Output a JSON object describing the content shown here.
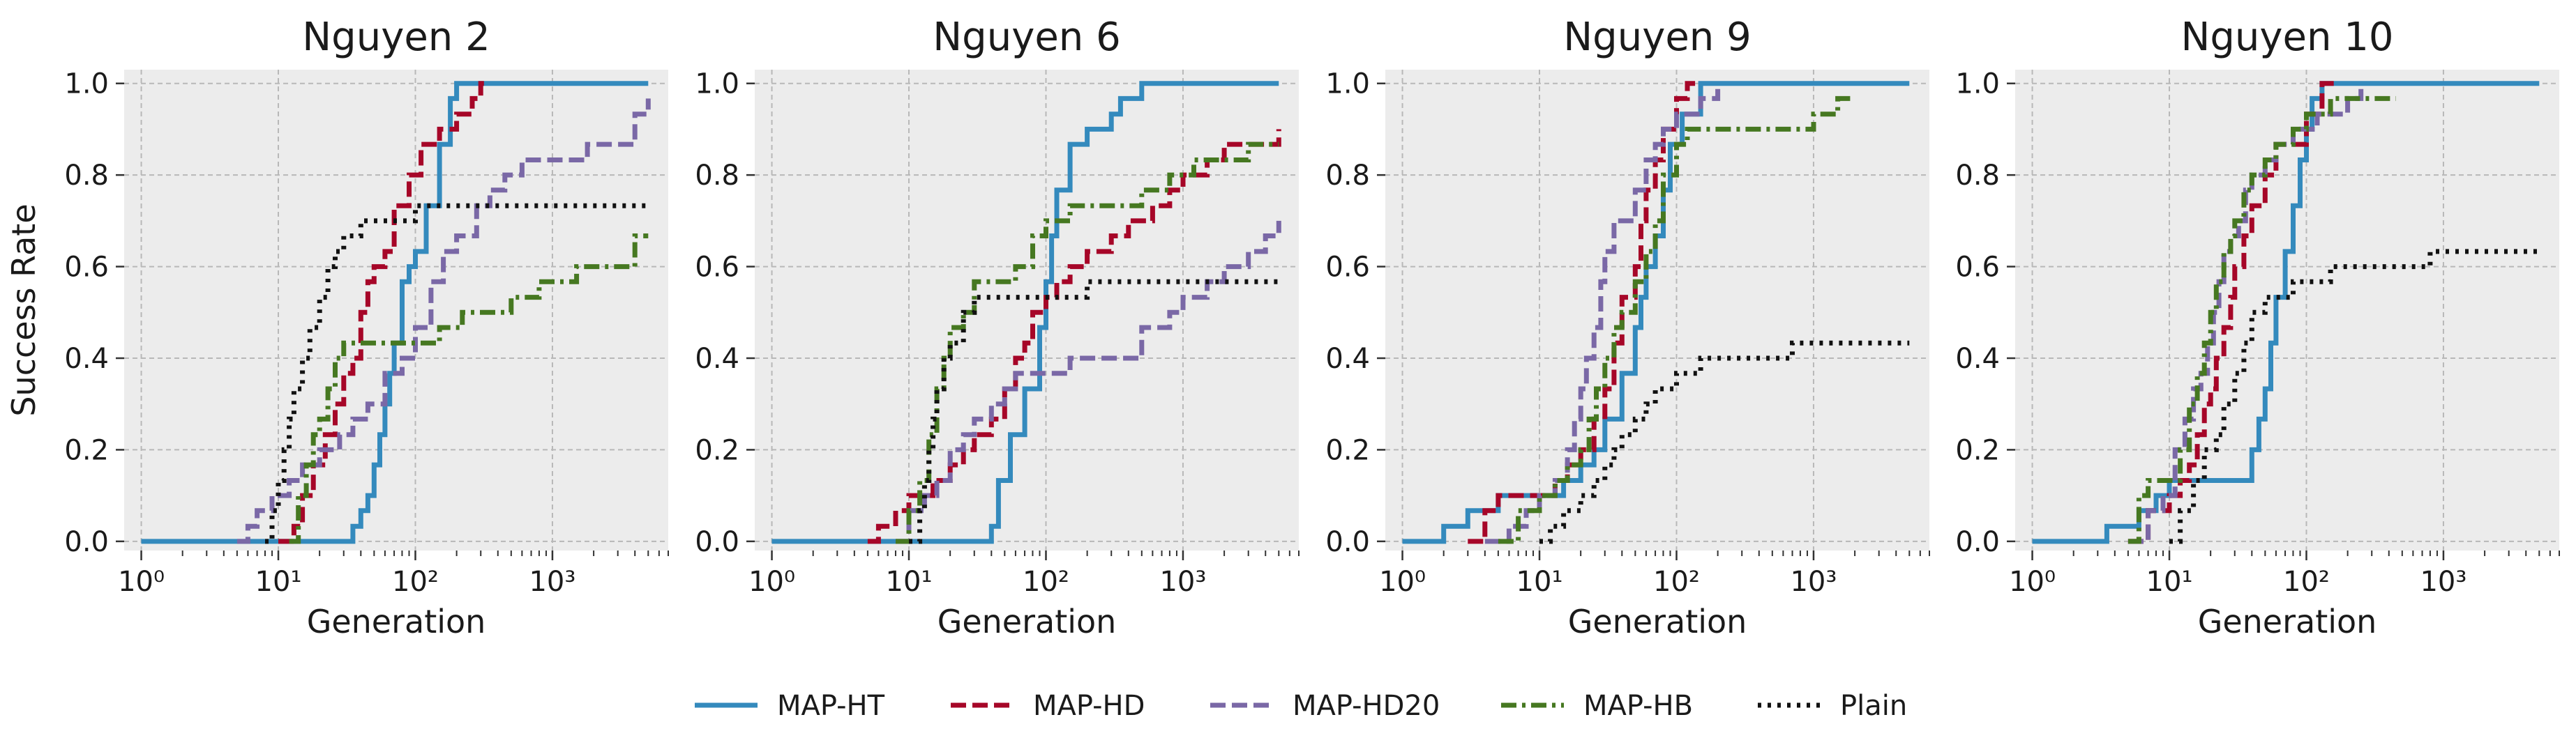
{
  "chart_data": [
    {
      "type": "line",
      "title": "Nguyen 2",
      "xlabel": "Generation",
      "ylabel": "Success Rate",
      "xscale": "log",
      "xlim": [
        0.75,
        7000
      ],
      "ylim": [
        -0.02,
        1.03
      ],
      "x_ticks": [
        1,
        10,
        100,
        1000
      ],
      "x_tick_labels": [
        "10⁰",
        "10¹",
        "10²",
        "10³"
      ],
      "y_ticks": [
        0.0,
        0.2,
        0.4,
        0.6,
        0.8,
        1.0
      ],
      "y_tick_labels": [
        "0.0",
        "0.2",
        "0.4",
        "0.6",
        "0.8",
        "1.0"
      ],
      "grid": true,
      "series": [
        {
          "name": "MAP-HT",
          "x": [
            1,
            30,
            35,
            40,
            45,
            50,
            55,
            60,
            65,
            70,
            80,
            90,
            100,
            120,
            150,
            180,
            200,
            5000
          ],
          "y": [
            0,
            0,
            0.033,
            0.067,
            0.1,
            0.167,
            0.233,
            0.3,
            0.367,
            0.433,
            0.567,
            0.6,
            0.633,
            0.733,
            0.867,
            0.967,
            1.0,
            1.0
          ]
        },
        {
          "name": "MAP-HD",
          "x": [
            10,
            13,
            15,
            18,
            22,
            26,
            30,
            35,
            40,
            45,
            50,
            60,
            70,
            90,
            110,
            150,
            200,
            260,
            300,
            330
          ],
          "y": [
            0,
            0.033,
            0.1,
            0.167,
            0.233,
            0.3,
            0.367,
            0.4,
            0.5,
            0.567,
            0.6,
            0.633,
            0.733,
            0.8,
            0.867,
            0.9,
            0.933,
            0.967,
            1.0,
            1.0
          ]
        },
        {
          "name": "MAP-HD20",
          "x": [
            5,
            6,
            7,
            9,
            12,
            15,
            20,
            28,
            35,
            45,
            60,
            80,
            100,
            130,
            160,
            200,
            280,
            350,
            450,
            600,
            800,
            1800,
            4000,
            5000
          ],
          "y": [
            0,
            0.033,
            0.067,
            0.1,
            0.133,
            0.167,
            0.2,
            0.233,
            0.267,
            0.3,
            0.367,
            0.4,
            0.467,
            0.567,
            0.633,
            0.667,
            0.733,
            0.767,
            0.8,
            0.833,
            0.833,
            0.867,
            0.933,
            0.967
          ]
        },
        {
          "name": "MAP-HB",
          "x": [
            12,
            14,
            16,
            18,
            20,
            23,
            26,
            30,
            40,
            60,
            100,
            150,
            200,
            220,
            250,
            300,
            500,
            800,
            1500,
            4000,
            5000
          ],
          "y": [
            0,
            0.1,
            0.167,
            0.233,
            0.267,
            0.333,
            0.4,
            0.433,
            0.433,
            0.433,
            0.433,
            0.467,
            0.467,
            0.5,
            0.5,
            0.5,
            0.533,
            0.567,
            0.6,
            0.667,
            0.667
          ]
        },
        {
          "name": "Plain",
          "x": [
            8,
            9,
            10,
            11,
            12,
            13,
            15,
            17,
            20,
            23,
            26,
            30,
            40,
            60,
            100,
            200,
            5000
          ],
          "y": [
            0,
            0.067,
            0.133,
            0.2,
            0.267,
            0.333,
            0.4,
            0.467,
            0.533,
            0.6,
            0.633,
            0.667,
            0.7,
            0.7,
            0.733,
            0.733,
            0.733
          ]
        }
      ]
    },
    {
      "type": "line",
      "title": "Nguyen 6",
      "xlabel": "Generation",
      "ylabel": "",
      "xscale": "log",
      "xlim": [
        0.75,
        7000
      ],
      "ylim": [
        -0.02,
        1.03
      ],
      "x_ticks": [
        1,
        10,
        100,
        1000
      ],
      "x_tick_labels": [
        "10⁰",
        "10¹",
        "10²",
        "10³"
      ],
      "y_ticks": [
        0.0,
        0.2,
        0.4,
        0.6,
        0.8,
        1.0
      ],
      "y_tick_labels": [
        "0.0",
        "0.2",
        "0.4",
        "0.6",
        "0.8",
        "1.0"
      ],
      "grid": true,
      "series": [
        {
          "name": "MAP-HT",
          "x": [
            1,
            40,
            45,
            55,
            70,
            90,
            100,
            110,
            120,
            150,
            200,
            300,
            350,
            500,
            5000
          ],
          "y": [
            0,
            0.033,
            0.133,
            0.233,
            0.333,
            0.467,
            0.567,
            0.667,
            0.767,
            0.867,
            0.9,
            0.933,
            0.967,
            1.0,
            1.0
          ]
        },
        {
          "name": "MAP-HD",
          "x": [
            5,
            6,
            8,
            10,
            15,
            20,
            25,
            30,
            40,
            50,
            60,
            70,
            80,
            100,
            120,
            150,
            200,
            300,
            400,
            600,
            800,
            1000,
            1500,
            2000,
            5000
          ],
          "y": [
            0,
            0.033,
            0.067,
            0.1,
            0.133,
            0.167,
            0.2,
            0.233,
            0.267,
            0.333,
            0.4,
            0.433,
            0.5,
            0.533,
            0.567,
            0.6,
            0.633,
            0.667,
            0.7,
            0.733,
            0.767,
            0.8,
            0.833,
            0.867,
            0.9
          ]
        },
        {
          "name": "MAP-HD20",
          "x": [
            8,
            10,
            13,
            16,
            20,
            25,
            30,
            40,
            50,
            60,
            80,
            100,
            150,
            200,
            300,
            500,
            800,
            1000,
            1500,
            2000,
            3000,
            4000,
            5000
          ],
          "y": [
            0,
            0.067,
            0.1,
            0.133,
            0.2,
            0.233,
            0.267,
            0.3,
            0.333,
            0.367,
            0.367,
            0.367,
            0.4,
            0.4,
            0.4,
            0.467,
            0.5,
            0.533,
            0.567,
            0.6,
            0.633,
            0.667,
            0.7
          ]
        },
        {
          "name": "MAP-HB",
          "x": [
            8,
            10,
            12,
            14,
            16,
            18,
            20,
            25,
            30,
            40,
            60,
            80,
            100,
            150,
            200,
            300,
            500,
            800,
            1200,
            2000,
            3000,
            5000
          ],
          "y": [
            0,
            0.067,
            0.133,
            0.233,
            0.333,
            0.4,
            0.467,
            0.5,
            0.567,
            0.567,
            0.6,
            0.667,
            0.7,
            0.733,
            0.733,
            0.733,
            0.767,
            0.8,
            0.833,
            0.833,
            0.867,
            0.867
          ]
        },
        {
          "name": "Plain",
          "x": [
            10,
            12,
            13,
            14,
            15,
            16,
            18,
            20,
            25,
            30,
            50,
            100,
            200,
            300,
            5000
          ],
          "y": [
            0,
            0.067,
            0.133,
            0.2,
            0.267,
            0.333,
            0.4,
            0.433,
            0.5,
            0.533,
            0.533,
            0.533,
            0.567,
            0.567,
            0.567
          ]
        }
      ]
    },
    {
      "type": "line",
      "title": "Nguyen 9",
      "xlabel": "Generation",
      "ylabel": "",
      "xscale": "log",
      "xlim": [
        0.75,
        7000
      ],
      "ylim": [
        -0.02,
        1.03
      ],
      "x_ticks": [
        1,
        10,
        100,
        1000
      ],
      "x_tick_labels": [
        "10⁰",
        "10¹",
        "10²",
        "10³"
      ],
      "y_ticks": [
        0.0,
        0.2,
        0.4,
        0.6,
        0.8,
        1.0
      ],
      "y_tick_labels": [
        "0.0",
        "0.2",
        "0.4",
        "0.6",
        "0.8",
        "1.0"
      ],
      "grid": true,
      "series": [
        {
          "name": "MAP-HT",
          "x": [
            1,
            2,
            3,
            5,
            10,
            15,
            20,
            25,
            30,
            40,
            50,
            55,
            60,
            70,
            80,
            90,
            110,
            150,
            5000
          ],
          "y": [
            0,
            0.033,
            0.067,
            0.1,
            0.1,
            0.133,
            0.167,
            0.2,
            0.267,
            0.367,
            0.467,
            0.533,
            0.6,
            0.667,
            0.767,
            0.867,
            0.933,
            1.0,
            1.0
          ]
        },
        {
          "name": "MAP-HD",
          "x": [
            3,
            4,
            5,
            7,
            10,
            13,
            16,
            20,
            25,
            30,
            35,
            40,
            50,
            55,
            60,
            70,
            80,
            100,
            120,
            140
          ],
          "y": [
            0,
            0.067,
            0.1,
            0.1,
            0.1,
            0.133,
            0.167,
            0.2,
            0.267,
            0.333,
            0.433,
            0.533,
            0.6,
            0.7,
            0.767,
            0.833,
            0.9,
            0.967,
            1.0,
            1.0
          ]
        },
        {
          "name": "MAP-HD20",
          "x": [
            4,
            6,
            8,
            10,
            13,
            16,
            18,
            20,
            22,
            25,
            28,
            30,
            35,
            40,
            50,
            60,
            70,
            80,
            100,
            150,
            200
          ],
          "y": [
            0,
            0.033,
            0.067,
            0.1,
            0.133,
            0.2,
            0.267,
            0.333,
            0.4,
            0.467,
            0.567,
            0.633,
            0.7,
            0.7,
            0.767,
            0.833,
            0.867,
            0.9,
            0.933,
            0.967,
            1.0
          ]
        },
        {
          "name": "MAP-HB",
          "x": [
            5,
            7,
            10,
            13,
            16,
            20,
            23,
            26,
            30,
            35,
            40,
            50,
            60,
            70,
            80,
            100,
            120,
            150,
            200,
            300,
            600,
            1000,
            1500,
            2000
          ],
          "y": [
            0,
            0.067,
            0.1,
            0.133,
            0.167,
            0.2,
            0.267,
            0.333,
            0.4,
            0.467,
            0.5,
            0.567,
            0.633,
            0.7,
            0.8,
            0.867,
            0.9,
            0.9,
            0.9,
            0.9,
            0.9,
            0.933,
            0.967,
            0.967
          ]
        },
        {
          "name": "Plain",
          "x": [
            10,
            12,
            15,
            20,
            25,
            30,
            35,
            40,
            50,
            60,
            70,
            80,
            100,
            150,
            200,
            300,
            600,
            700,
            5000
          ],
          "y": [
            0,
            0.033,
            0.067,
            0.1,
            0.133,
            0.167,
            0.2,
            0.233,
            0.267,
            0.3,
            0.333,
            0.333,
            0.367,
            0.4,
            0.4,
            0.4,
            0.4,
            0.433,
            0.433
          ]
        }
      ]
    },
    {
      "type": "line",
      "title": "Nguyen 10",
      "xlabel": "Generation",
      "ylabel": "",
      "xscale": "log",
      "xlim": [
        0.75,
        7000
      ],
      "ylim": [
        -0.02,
        1.03
      ],
      "x_ticks": [
        1,
        10,
        100,
        1000
      ],
      "x_tick_labels": [
        "10⁰",
        "10¹",
        "10²",
        "10³"
      ],
      "y_ticks": [
        0.0,
        0.2,
        0.4,
        0.6,
        0.8,
        1.0
      ],
      "y_tick_labels": [
        "0.0",
        "0.2",
        "0.4",
        "0.6",
        "0.8",
        "1.0"
      ],
      "grid": true,
      "series": [
        {
          "name": "MAP-HT",
          "x": [
            1,
            3.5,
            4,
            5,
            6,
            8,
            10,
            12,
            40,
            45,
            50,
            55,
            60,
            70,
            80,
            90,
            100,
            110,
            130,
            5000
          ],
          "y": [
            0,
            0.033,
            0.033,
            0.033,
            0.067,
            0.1,
            0.133,
            0.133,
            0.2,
            0.267,
            0.333,
            0.433,
            0.533,
            0.633,
            0.733,
            0.833,
            0.9,
            0.967,
            1.0,
            1.0
          ]
        },
        {
          "name": "MAP-HD",
          "x": [
            5,
            7,
            10,
            12,
            14,
            16,
            18,
            20,
            22,
            25,
            28,
            30,
            35,
            40,
            50,
            60,
            80,
            100,
            130,
            160
          ],
          "y": [
            0,
            0.067,
            0.1,
            0.133,
            0.167,
            0.233,
            0.3,
            0.333,
            0.4,
            0.467,
            0.533,
            0.6,
            0.667,
            0.733,
            0.8,
            0.867,
            0.867,
            0.933,
            1.0,
            1.0
          ]
        },
        {
          "name": "MAP-HD20",
          "x": [
            5,
            7,
            9,
            11,
            13,
            15,
            17,
            19,
            21,
            23,
            25,
            28,
            32,
            36,
            40,
            50,
            60,
            80,
            120,
            200,
            250
          ],
          "y": [
            0,
            0.067,
            0.1,
            0.2,
            0.267,
            0.333,
            0.367,
            0.433,
            0.5,
            0.567,
            0.633,
            0.667,
            0.7,
            0.767,
            0.8,
            0.833,
            0.867,
            0.9,
            0.933,
            0.967,
            1.0
          ]
        },
        {
          "name": "MAP-HB",
          "x": [
            5,
            6,
            7,
            8,
            10,
            12,
            14,
            16,
            18,
            20,
            22,
            25,
            28,
            30,
            35,
            40,
            50,
            60,
            80,
            100,
            150,
            300,
            450
          ],
          "y": [
            0,
            0.1,
            0.133,
            0.133,
            0.133,
            0.2,
            0.3,
            0.367,
            0.433,
            0.5,
            0.567,
            0.633,
            0.667,
            0.7,
            0.767,
            0.8,
            0.833,
            0.867,
            0.9,
            0.933,
            0.967,
            0.967,
            0.967
          ]
        },
        {
          "name": "Plain",
          "x": [
            10,
            12,
            15,
            18,
            22,
            25,
            30,
            35,
            40,
            50,
            60,
            80,
            100,
            150,
            200,
            300,
            500,
            800,
            5000
          ],
          "y": [
            0,
            0.067,
            0.133,
            0.2,
            0.233,
            0.3,
            0.367,
            0.433,
            0.5,
            0.533,
            0.533,
            0.567,
            0.567,
            0.6,
            0.6,
            0.6,
            0.6,
            0.633,
            0.633
          ]
        }
      ]
    }
  ],
  "legend": {
    "placement": "bottom-center",
    "entries": [
      {
        "name": "MAP-HT",
        "color": "#348abd",
        "dash": "solid"
      },
      {
        "name": "MAP-HD",
        "color": "#a60628",
        "dash": "dashed"
      },
      {
        "name": "MAP-HD20",
        "color": "#7a68a6",
        "dash": "dashed"
      },
      {
        "name": "MAP-HB",
        "color": "#467821",
        "dash": "dashdot"
      },
      {
        "name": "Plain",
        "color": "#111111",
        "dash": "dotted"
      }
    ]
  }
}
